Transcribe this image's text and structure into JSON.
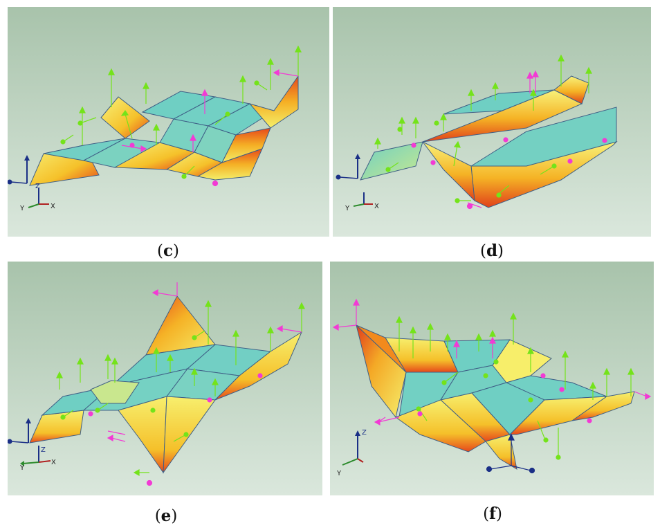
{
  "panels": [
    {
      "id": "c",
      "label": "c"
    },
    {
      "id": "d",
      "label": "d"
    },
    {
      "id": "e",
      "label": "e"
    },
    {
      "id": "f",
      "label": "f"
    }
  ],
  "axes": {
    "x": "X",
    "y": "Y",
    "z": "Z"
  },
  "colors": {
    "bg_top": "#a9c3ac",
    "bg_bottom": "#dbe8dd",
    "flat_face": "#6fcfc3",
    "warm_yellow": "#f7ef5c",
    "warm_orange": "#f39b1c",
    "warm_red": "#e6471a",
    "edge": "#3f5f86",
    "green_vector": "#74e31a",
    "magenta_vector": "#f23ad4",
    "axis_blue": "#1a2f86",
    "axis_green": "#2c8b2c",
    "axis_red": "#b02020"
  }
}
